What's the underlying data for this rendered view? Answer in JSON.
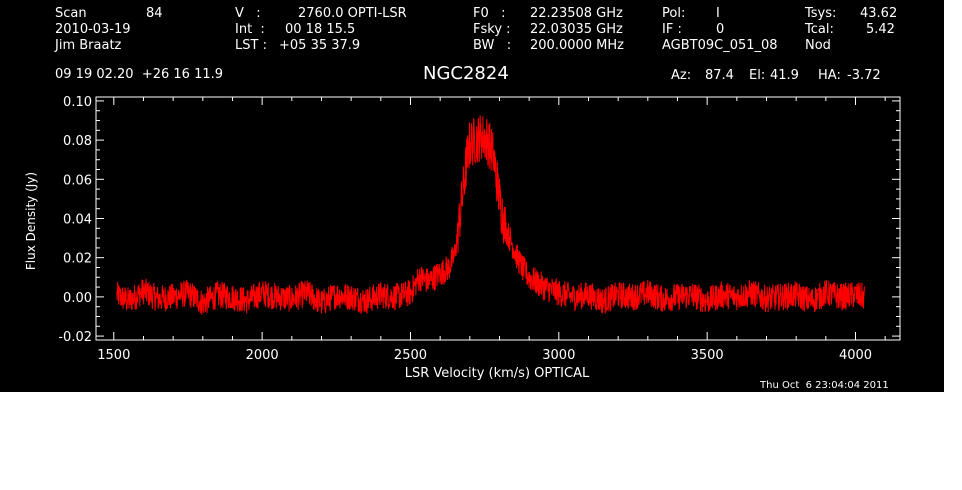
{
  "header": {
    "scan_label": "Scan",
    "scan_value": "84",
    "date": "2010-03-19",
    "observer": "Jim Braatz",
    "v_label": "V   :",
    "v_value": "2760.0 OPTI-LSR",
    "int_label": "Int  :",
    "int_value": "00 18 15.5",
    "lst_label": "LST :",
    "lst_value": "+05 35 37.9",
    "f0_label": "F0   :",
    "f0_value": "22.23508 GHz",
    "fsky_label": "Fsky :",
    "fsky_value": "22.03035 GHz",
    "bw_label": "BW   :",
    "bw_value": "200.0000 MHz",
    "pol_label": "Pol:",
    "pol_value": "I",
    "if_label": "IF :",
    "if_value": "0",
    "project": "AGBT09C_051_08",
    "tsys_label": "Tsys:",
    "tsys_value": "43.62",
    "tcal_label": "Tcal:",
    "tcal_value": "5.42",
    "procedure": "Nod",
    "coords": "09 19 02.20  +26 16 11.9",
    "source": "NGC2824",
    "az_label": "Az:",
    "az_value": "87.4",
    "el_label": "El:",
    "el_value": "41.9",
    "ha_label": "HA:",
    "ha_value": "-3.72"
  },
  "timestamp": "Thu Oct  6 23:04:04 2011",
  "colors": {
    "background": "#000000",
    "axes": "#ffffff",
    "trace": "#ff0000"
  },
  "chart_data": {
    "type": "line",
    "xlabel": "LSR Velocity (km/s) OPTICAL",
    "ylabel": "Flux Density (Jy)",
    "xlim": [
      1440,
      4150
    ],
    "ylim": [
      -0.022,
      0.102
    ],
    "xticks": [
      1500,
      2000,
      2500,
      3000,
      3500,
      4000
    ],
    "xtick_labels": [
      "1500",
      "2000",
      "2500",
      "3000",
      "3500",
      "4000"
    ],
    "yticks": [
      -0.02,
      0.0,
      0.02,
      0.04,
      0.06,
      0.08,
      0.1
    ],
    "ytick_labels": [
      "-0.02",
      "0.00",
      "0.02",
      "0.04",
      "0.06",
      "0.08",
      "0.10"
    ],
    "grid": false,
    "series": [
      {
        "x": [
          1510,
          1550,
          1600,
          1650,
          1700,
          1750,
          1800,
          1850,
          1900,
          1950,
          2000,
          2050,
          2100,
          2150,
          2200,
          2250,
          2300,
          2350,
          2400,
          2450,
          2500,
          2530,
          2560,
          2600,
          2630,
          2650,
          2670,
          2690,
          2700,
          2720,
          2740,
          2760,
          2780,
          2800,
          2820,
          2840,
          2860,
          2880,
          2900,
          2920,
          2950,
          3000,
          3050,
          3100,
          3150,
          3200,
          3250,
          3300,
          3350,
          3400,
          3450,
          3500,
          3550,
          3600,
          3650,
          3700,
          3750,
          3800,
          3850,
          3900,
          3950,
          4000,
          4030
        ],
        "y": [
          0.001,
          -0.002,
          0.003,
          -0.001,
          0.0,
          0.002,
          -0.003,
          0.001,
          0.0,
          -0.002,
          0.002,
          0.0,
          -0.001,
          0.002,
          -0.003,
          0.001,
          0.0,
          -0.002,
          0.001,
          0.0,
          0.002,
          0.01,
          0.008,
          0.012,
          0.015,
          0.022,
          0.045,
          0.07,
          0.078,
          0.08,
          0.082,
          0.08,
          0.072,
          0.05,
          0.035,
          0.028,
          0.02,
          0.014,
          0.01,
          0.008,
          0.005,
          0.002,
          0.0,
          0.001,
          -0.002,
          0.001,
          0.0,
          0.002,
          -0.001,
          0.0,
          0.001,
          -0.002,
          0.001,
          0.0,
          0.002,
          -0.001,
          0.0,
          0.001,
          -0.002,
          0.002,
          0.0,
          0.001,
          0.0
        ]
      }
    ]
  }
}
